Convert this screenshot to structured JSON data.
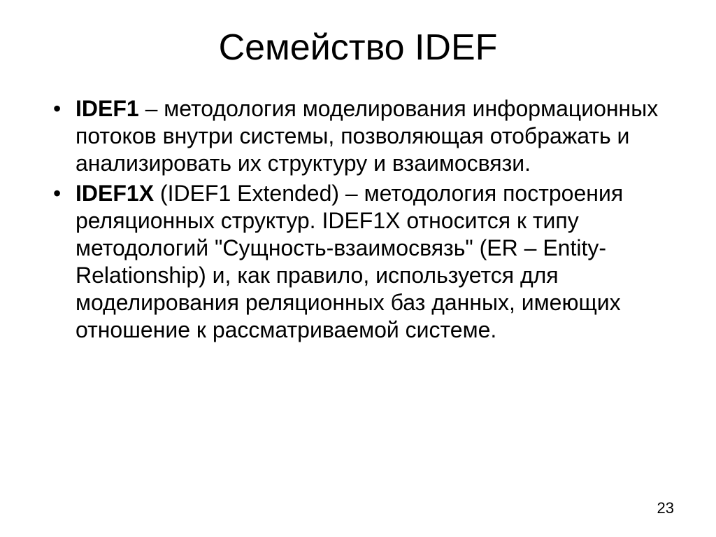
{
  "slide": {
    "title": "Семейство IDEF",
    "bullets": [
      {
        "bold": "IDEF1",
        "text": " – методология моделирования информационных потоков внутри системы, позволяющая отображать и анализировать их структуру и взаимосвязи."
      },
      {
        "bold": "IDEF1X",
        "text": " (IDEF1 Extended) – методология построения реляционных структур. IDEF1X относится к типу методологий \"Сущность-взаимосвязь\" (ER – Entity-Relationship) и, как правило, используется для моделирования реляционных баз данных, имеющих отношение к рассматриваемой системе."
      }
    ],
    "page_number": "23"
  },
  "style": {
    "background_color": "#ffffff",
    "text_color": "#000000",
    "title_fontsize": 52,
    "body_fontsize": 32,
    "font_family": "Arial"
  }
}
